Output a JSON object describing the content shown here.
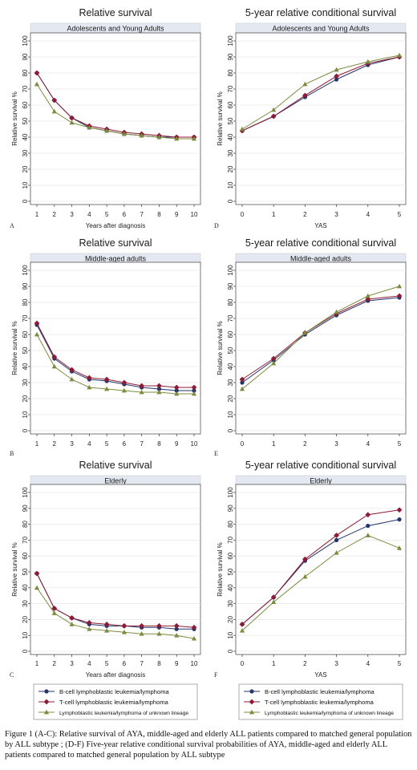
{
  "colors": {
    "bcell": "#23356b",
    "tcell": "#8c1c35",
    "unknown": "#7c8c3e",
    "strip": "#e3e8f1",
    "plotbg": "#ffffff",
    "grid": "#e6e6e6"
  },
  "caption": "Figure 1 (A-C): Relative survival of AYA, middle-aged and elderly ALL patients compared to matched general population by ALL subtype ; (D-F) Five-year relative conditional survival probabilities of AYA, middle-aged and elderly ALL patients compared to matched general population by ALL subtype",
  "legend_entries": [
    "B-cell lymphoblastic leukemia/lymphoma",
    "T-cell lymphoblastic leukemia/lymphoma",
    "Lymphoblastic leukemia/lymphoma of unknown lineage"
  ],
  "chart_data": [
    {
      "id": "A",
      "type": "line",
      "title": "Relative survival",
      "subtitle": "Adolescents and Young Adults",
      "xlabel": "Years after diagnosis",
      "ylabel": "Relative survival %",
      "x": [
        1,
        2,
        3,
        4,
        5,
        6,
        7,
        8,
        9,
        10
      ],
      "xlim": [
        1,
        10
      ],
      "ylim": [
        0,
        100
      ],
      "yticks": [
        0,
        10,
        20,
        30,
        40,
        50,
        60,
        70,
        80,
        90,
        100
      ],
      "series": [
        {
          "name": "B-cell lymphoblastic leukemia/lymphoma",
          "values": [
            80,
            63,
            52,
            46,
            44,
            42,
            41,
            40,
            40,
            40
          ]
        },
        {
          "name": "T-cell lymphoblastic leukemia/lymphoma",
          "values": [
            80,
            63,
            52,
            47,
            45,
            43,
            42,
            41,
            40,
            40
          ]
        },
        {
          "name": "Lymphoblastic leukemia/lymphoma of unknown lineage",
          "values": [
            73,
            56,
            49,
            46,
            44,
            42,
            41,
            40,
            39,
            39
          ]
        }
      ]
    },
    {
      "id": "D",
      "type": "line",
      "title": "5-year relative conditional survival",
      "subtitle": "Adolescents and Young Adults",
      "xlabel": "YAS",
      "ylabel": "Relative survival %",
      "x": [
        0,
        1,
        2,
        3,
        4,
        5
      ],
      "xlim": [
        0,
        5
      ],
      "ylim": [
        0,
        100
      ],
      "yticks": [
        0,
        10,
        20,
        30,
        40,
        50,
        60,
        70,
        80,
        90,
        100
      ],
      "series": [
        {
          "name": "B-cell lymphoblastic leukemia/lymphoma",
          "values": [
            44,
            53,
            65,
            76,
            85,
            90
          ]
        },
        {
          "name": "T-cell lymphoblastic leukemia/lymphoma",
          "values": [
            44,
            53,
            66,
            78,
            86,
            90
          ]
        },
        {
          "name": "Lymphoblastic leukemia/lymphoma of unknown lineage",
          "values": [
            45,
            57,
            73,
            82,
            87,
            91
          ]
        }
      ]
    },
    {
      "id": "B",
      "type": "line",
      "title": "Relative survival",
      "subtitle": "Middle-aged adults",
      "xlabel": "",
      "ylabel": "Relative survival %",
      "x": [
        1,
        2,
        3,
        4,
        5,
        6,
        7,
        8,
        9,
        10
      ],
      "xlim": [
        1,
        10
      ],
      "ylim": [
        0,
        100
      ],
      "yticks": [
        0,
        10,
        20,
        30,
        40,
        50,
        60,
        70,
        80,
        90,
        100
      ],
      "series": [
        {
          "name": "B-cell lymphoblastic leukemia/lymphoma",
          "values": [
            66,
            45,
            37,
            32,
            31,
            29,
            27,
            26,
            25,
            25
          ]
        },
        {
          "name": "T-cell lymphoblastic leukemia/lymphoma",
          "values": [
            67,
            46,
            38,
            33,
            32,
            30,
            28,
            28,
            27,
            27
          ]
        },
        {
          "name": "Lymphoblastic leukemia/lymphoma of unknown lineage",
          "values": [
            60,
            40,
            32,
            27,
            26,
            25,
            24,
            24,
            23,
            23
          ]
        }
      ]
    },
    {
      "id": "E",
      "type": "line",
      "title": "5-year relative conditional survival",
      "subtitle": "Middle-aged adults",
      "xlabel": "",
      "ylabel": "Relative survival %",
      "x": [
        0,
        1,
        2,
        3,
        4,
        5
      ],
      "xlim": [
        0,
        5
      ],
      "ylim": [
        0,
        100
      ],
      "yticks": [
        0,
        10,
        20,
        30,
        40,
        50,
        60,
        70,
        80,
        90,
        100
      ],
      "series": [
        {
          "name": "B-cell lymphoblastic leukemia/lymphoma",
          "values": [
            30,
            44,
            60,
            72,
            81,
            83
          ]
        },
        {
          "name": "T-cell lymphoblastic leukemia/lymphoma",
          "values": [
            32,
            45,
            61,
            73,
            82,
            84
          ]
        },
        {
          "name": "Lymphoblastic leukemia/lymphoma of unknown lineage",
          "values": [
            26,
            42,
            61,
            74,
            84,
            90
          ]
        }
      ]
    },
    {
      "id": "C",
      "type": "line",
      "title": "Relative survival",
      "subtitle": "Elderly",
      "xlabel": "Years after diagnosis",
      "ylabel": "Relative survival %",
      "x": [
        1,
        2,
        3,
        4,
        5,
        6,
        7,
        8,
        9,
        10
      ],
      "xlim": [
        1,
        10
      ],
      "ylim": [
        0,
        100
      ],
      "yticks": [
        0,
        10,
        20,
        30,
        40,
        50,
        60,
        70,
        80,
        90,
        100
      ],
      "series": [
        {
          "name": "B-cell lymphoblastic leukemia/lymphoma",
          "values": [
            49,
            27,
            21,
            17,
            16,
            16,
            15,
            15,
            14,
            14
          ]
        },
        {
          "name": "T-cell lymphoblastic leukemia/lymphoma",
          "values": [
            49,
            27,
            21,
            18,
            17,
            16,
            16,
            16,
            16,
            15
          ]
        },
        {
          "name": "Lymphoblastic leukemia/lymphoma of unknown lineage",
          "values": [
            40,
            24,
            17,
            14,
            13,
            12,
            11,
            11,
            10,
            8
          ]
        }
      ]
    },
    {
      "id": "F",
      "type": "line",
      "title": "5-year relative conditional survival",
      "subtitle": "Elderly",
      "xlabel": "YAS",
      "ylabel": "Relative survival %",
      "x": [
        0,
        1,
        2,
        3,
        4,
        5
      ],
      "xlim": [
        0,
        5
      ],
      "ylim": [
        0,
        100
      ],
      "yticks": [
        0,
        10,
        20,
        30,
        40,
        50,
        60,
        70,
        80,
        90,
        100
      ],
      "series": [
        {
          "name": "B-cell lymphoblastic leukemia/lymphoma",
          "values": [
            17,
            34,
            57,
            70,
            79,
            83
          ]
        },
        {
          "name": "T-cell lymphoblastic leukemia/lymphoma",
          "values": [
            17,
            34,
            58,
            73,
            86,
            89
          ]
        },
        {
          "name": "Lymphoblastic leukemia/lymphoma of unknown lineage",
          "values": [
            13,
            31,
            47,
            62,
            73,
            65
          ]
        }
      ]
    }
  ]
}
